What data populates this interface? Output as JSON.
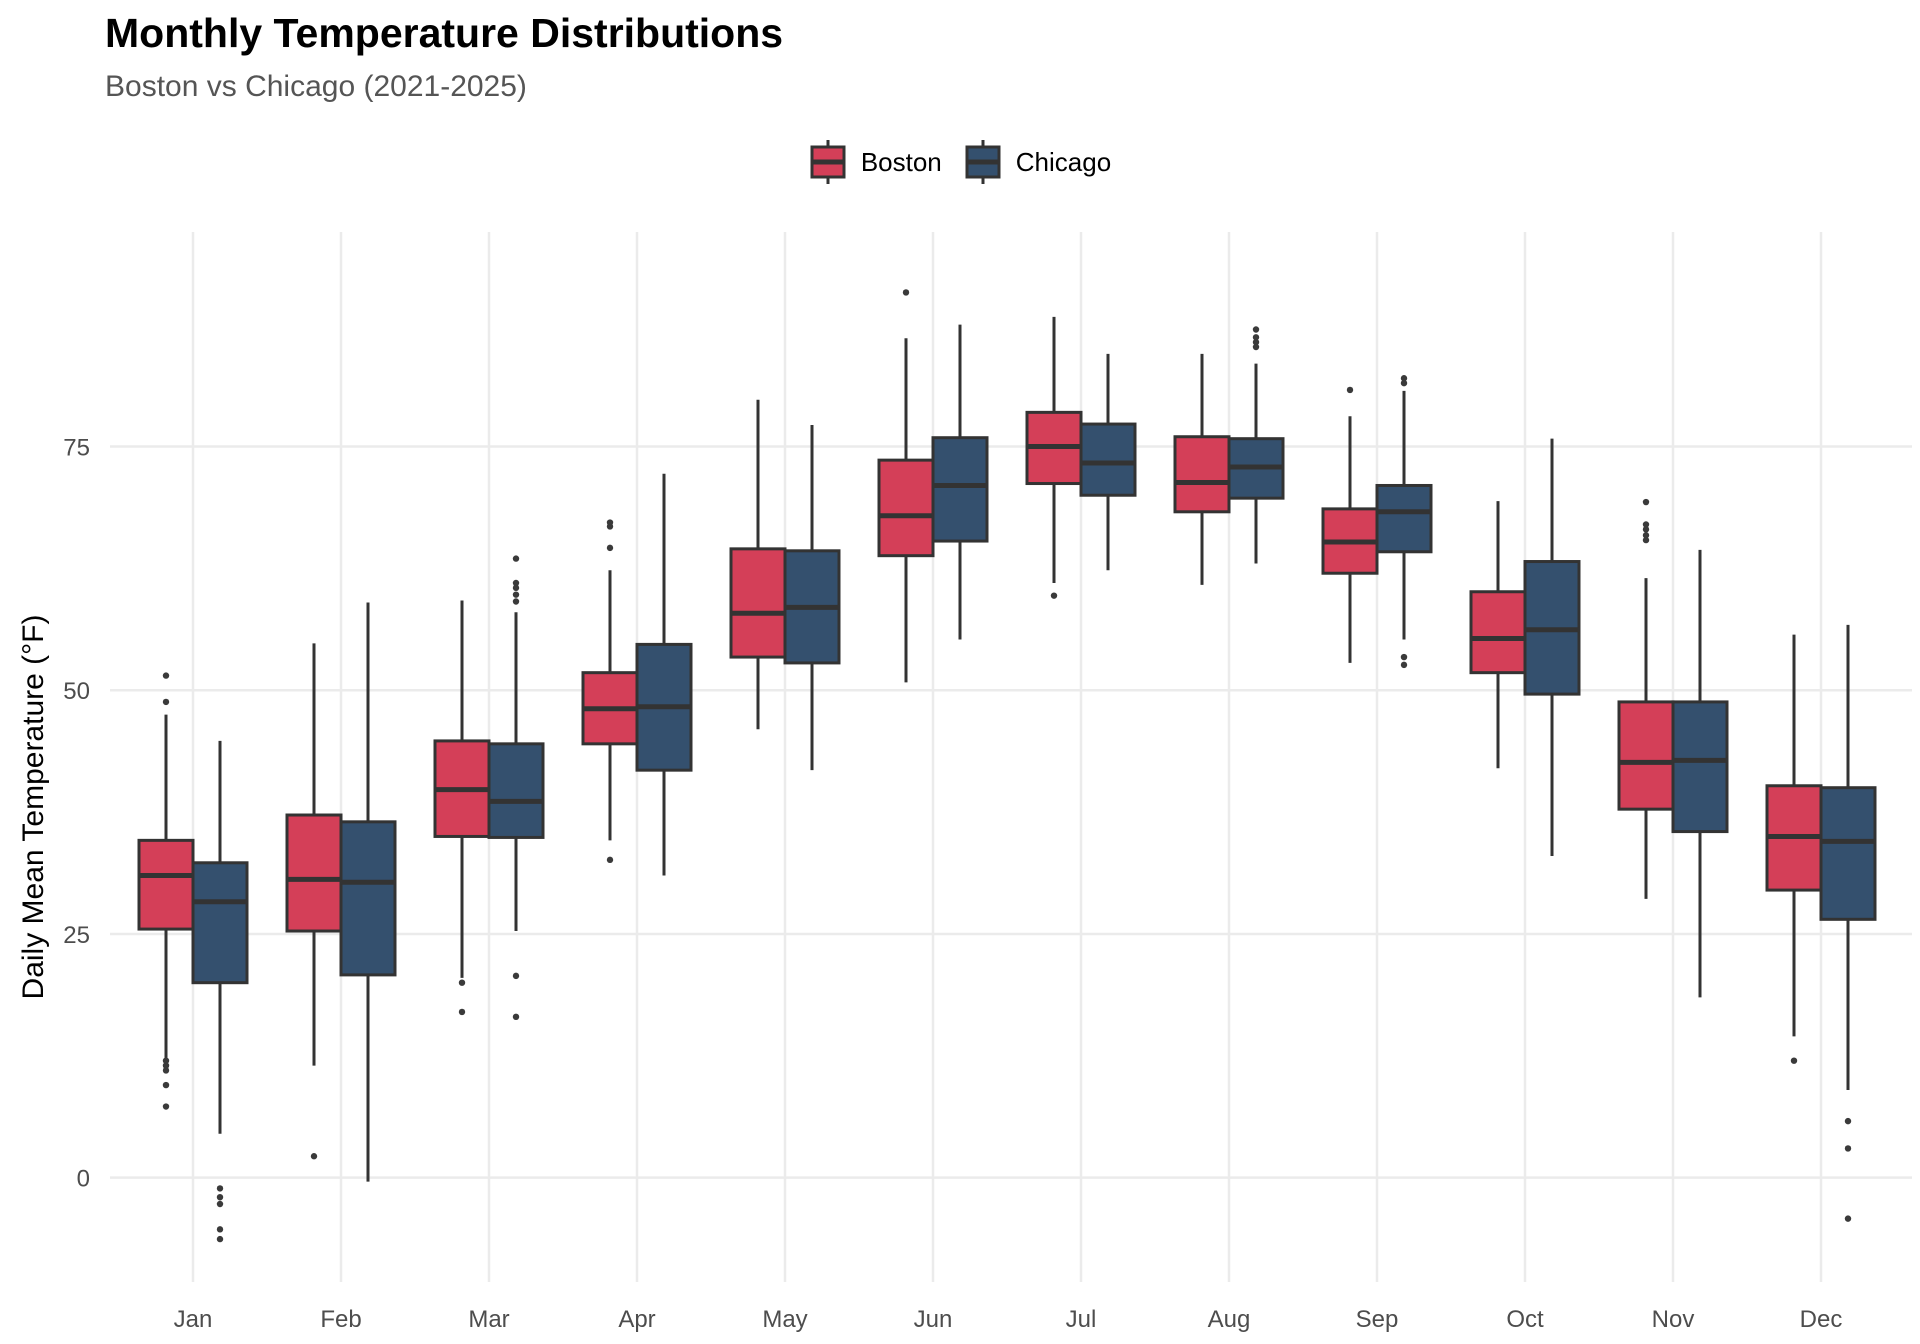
{
  "chart_data": {
    "type": "boxplot",
    "title": "Monthly Temperature Distributions",
    "subtitle": "Boston vs Chicago (2021-2025)",
    "xlabel": "",
    "ylabel": "Daily Mean Temperature (°F)",
    "ylim": [
      -10.7,
      97
    ],
    "yticks": [
      0,
      25,
      50,
      75
    ],
    "grid": true,
    "legend_position": "top",
    "categories": [
      "Jan",
      "Feb",
      "Mar",
      "Apr",
      "May",
      "Jun",
      "Jul",
      "Aug",
      "Sep",
      "Oct",
      "Nov",
      "Dec"
    ],
    "series": [
      {
        "name": "Boston",
        "color": "#D43F58",
        "boxes": [
          {
            "lower": 12,
            "q1": 25.5,
            "median": 31,
            "q3": 34.6,
            "upper": 47.5,
            "outliers": [
              51.5,
              48.8,
              12,
              11.5,
              11,
              9.5,
              7.3
            ]
          },
          {
            "lower": 11.5,
            "q1": 25.3,
            "median": 30.6,
            "q3": 37.2,
            "upper": 54.8,
            "outliers": [
              2.2
            ]
          },
          {
            "lower": 20.5,
            "q1": 35,
            "median": 39.8,
            "q3": 44.8,
            "upper": 59.2,
            "outliers": [
              20,
              17
            ]
          },
          {
            "lower": 34.6,
            "q1": 44.5,
            "median": 48.1,
            "q3": 51.8,
            "upper": 62.3,
            "outliers": [
              67.2,
              66.8,
              64.6,
              32.6
            ]
          },
          {
            "lower": 46,
            "q1": 53.4,
            "median": 57.9,
            "q3": 64.5,
            "upper": 79.8,
            "outliers": []
          },
          {
            "lower": 50.8,
            "q1": 63.8,
            "median": 67.9,
            "q3": 73.6,
            "upper": 86.1,
            "outliers": [
              90.8
            ]
          },
          {
            "lower": 61,
            "q1": 71.2,
            "median": 75,
            "q3": 78.5,
            "upper": 88.3,
            "outliers": [
              59.7
            ]
          },
          {
            "lower": 60.8,
            "q1": 68.3,
            "median": 71.3,
            "q3": 76,
            "upper": 84.5,
            "outliers": []
          },
          {
            "lower": 52.8,
            "q1": 62,
            "median": 65.2,
            "q3": 68.6,
            "upper": 78.1,
            "outliers": [
              80.8
            ]
          },
          {
            "lower": 42,
            "q1": 51.8,
            "median": 55.3,
            "q3": 60.1,
            "upper": 69.4,
            "outliers": []
          },
          {
            "lower": 28.6,
            "q1": 37.8,
            "median": 42.6,
            "q3": 48.8,
            "upper": 61.5,
            "outliers": [
              69.3,
              67,
              66.5,
              65.9,
              65.4
            ]
          },
          {
            "lower": 14.5,
            "q1": 29.5,
            "median": 35,
            "q3": 40.2,
            "upper": 55.7,
            "outliers": [
              12
            ]
          }
        ]
      },
      {
        "name": "Chicago",
        "color": "#34506E",
        "boxes": [
          {
            "lower": 4.5,
            "q1": 20,
            "median": 28.3,
            "q3": 32.3,
            "upper": 44.8,
            "outliers": [
              -1.1,
              -2,
              -2.7,
              -5.3,
              -6.3
            ]
          },
          {
            "lower": -0.4,
            "q1": 20.8,
            "median": 30.3,
            "q3": 36.5,
            "upper": 59,
            "outliers": []
          },
          {
            "lower": 25.3,
            "q1": 34.9,
            "median": 38.6,
            "q3": 44.5,
            "upper": 58,
            "outliers": [
              63.5,
              61,
              60.5,
              59.8,
              59.1,
              20.7,
              16.5
            ]
          },
          {
            "lower": 31,
            "q1": 41.8,
            "median": 48.3,
            "q3": 54.7,
            "upper": 72.2,
            "outliers": []
          },
          {
            "lower": 41.8,
            "q1": 52.8,
            "median": 58.5,
            "q3": 64.3,
            "upper": 77.2,
            "outliers": []
          },
          {
            "lower": 55.2,
            "q1": 65.3,
            "median": 71,
            "q3": 75.9,
            "upper": 87.5,
            "outliers": []
          },
          {
            "lower": 62.3,
            "q1": 70,
            "median": 73.3,
            "q3": 77.3,
            "upper": 84.5,
            "outliers": []
          },
          {
            "lower": 63,
            "q1": 69.7,
            "median": 72.9,
            "q3": 75.8,
            "upper": 83.5,
            "outliers": [
              87,
              86.2,
              85.7,
              85.2
            ]
          },
          {
            "lower": 55.2,
            "q1": 64.2,
            "median": 68.3,
            "q3": 71,
            "upper": 80.7,
            "outliers": [
              82,
              81.5,
              53.4,
              52.6
            ]
          },
          {
            "lower": 33,
            "q1": 49.6,
            "median": 56.2,
            "q3": 63.2,
            "upper": 75.8,
            "outliers": []
          },
          {
            "lower": 18.5,
            "q1": 35.5,
            "median": 42.8,
            "q3": 48.8,
            "upper": 64.4,
            "outliers": []
          },
          {
            "lower": 9,
            "q1": 26.5,
            "median": 34.5,
            "q3": 40,
            "upper": 56.7,
            "outliers": [
              5.8,
              3,
              -4.2
            ]
          }
        ]
      }
    ]
  }
}
